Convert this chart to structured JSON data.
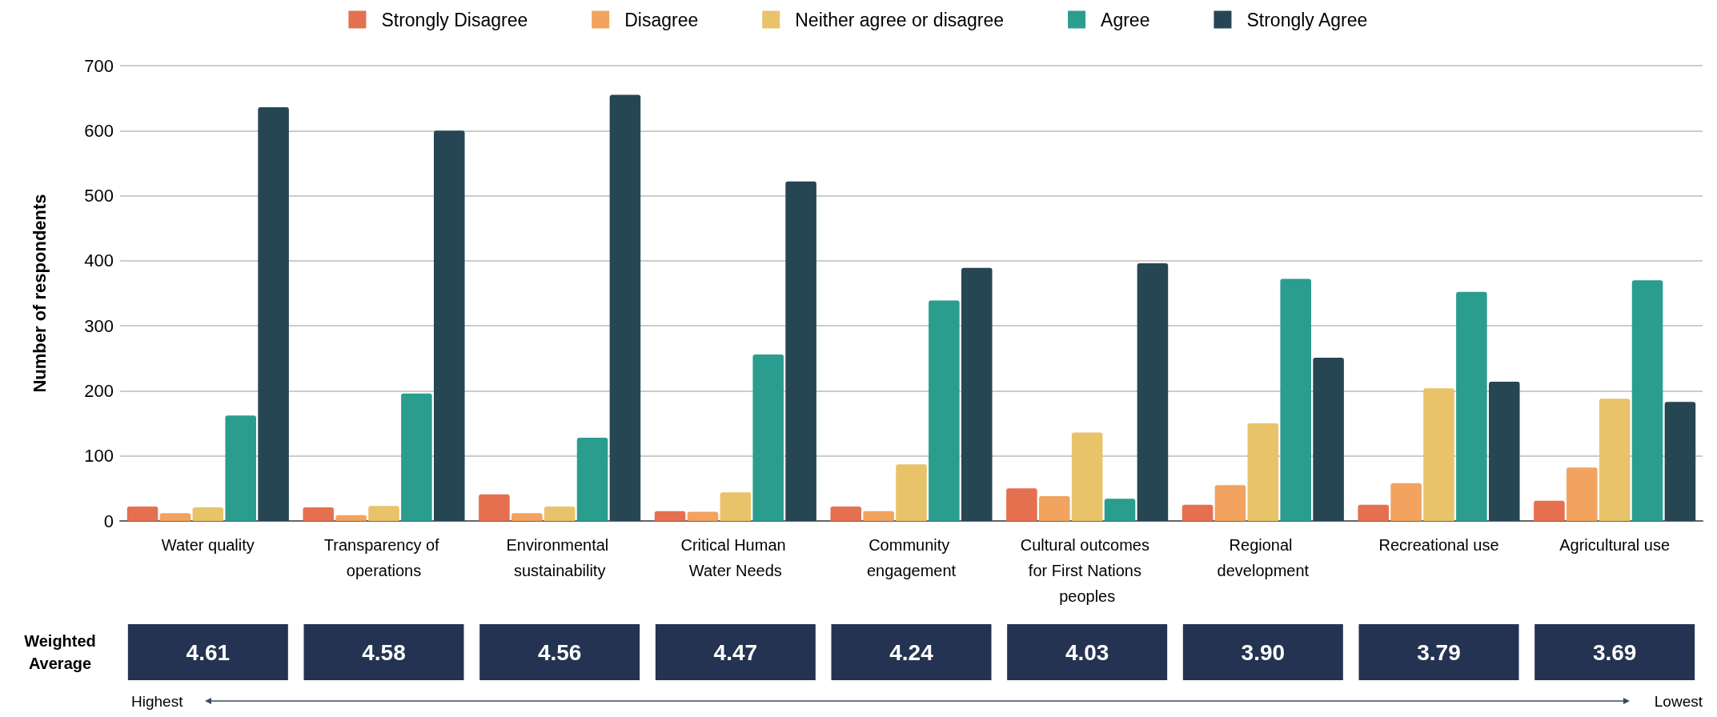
{
  "chart_data": {
    "type": "bar",
    "ylabel": "Number of respondents",
    "categories": [
      "Water quality",
      "Transparency of operations",
      "Environmental sustainability",
      "Critical Human Water Needs",
      "Community engagement",
      "Cultural outcomes for First Nations peoples",
      "Regional development",
      "Recreational use",
      "Agricultural use"
    ],
    "series": [
      {
        "name": "Strongly Disagree",
        "color": "#e5704f",
        "values": [
          22,
          21,
          41,
          15,
          22,
          50,
          25,
          25,
          31
        ]
      },
      {
        "name": "Disagree",
        "color": "#f2a35f",
        "values": [
          12,
          9,
          12,
          14,
          15,
          38,
          55,
          58,
          82
        ]
      },
      {
        "name": "Neither agree or disagree",
        "color": "#e8c36a",
        "values": [
          21,
          23,
          22,
          44,
          87,
          136,
          150,
          204,
          188
        ]
      },
      {
        "name": "Agree",
        "color": "#2a9d8f",
        "values": [
          162,
          196,
          128,
          256,
          339,
          34,
          372,
          352,
          370
        ]
      },
      {
        "name": "Strongly Agree",
        "color": "#264653",
        "values": [
          636,
          600,
          655,
          522,
          389,
          396,
          251,
          214,
          183
        ]
      }
    ],
    "ylim": [
      0,
      700
    ],
    "yticks": [
      0,
      100,
      200,
      300,
      400,
      500,
      600,
      700
    ],
    "grid": "y",
    "legend": "top",
    "annotations": [
      "Weighted Average",
      "4.61",
      "4.58",
      "4.56",
      "4.47",
      "4.24",
      "4.03",
      "3.90",
      "3.79",
      "3.69",
      "Highest",
      "Lowest"
    ]
  }
}
